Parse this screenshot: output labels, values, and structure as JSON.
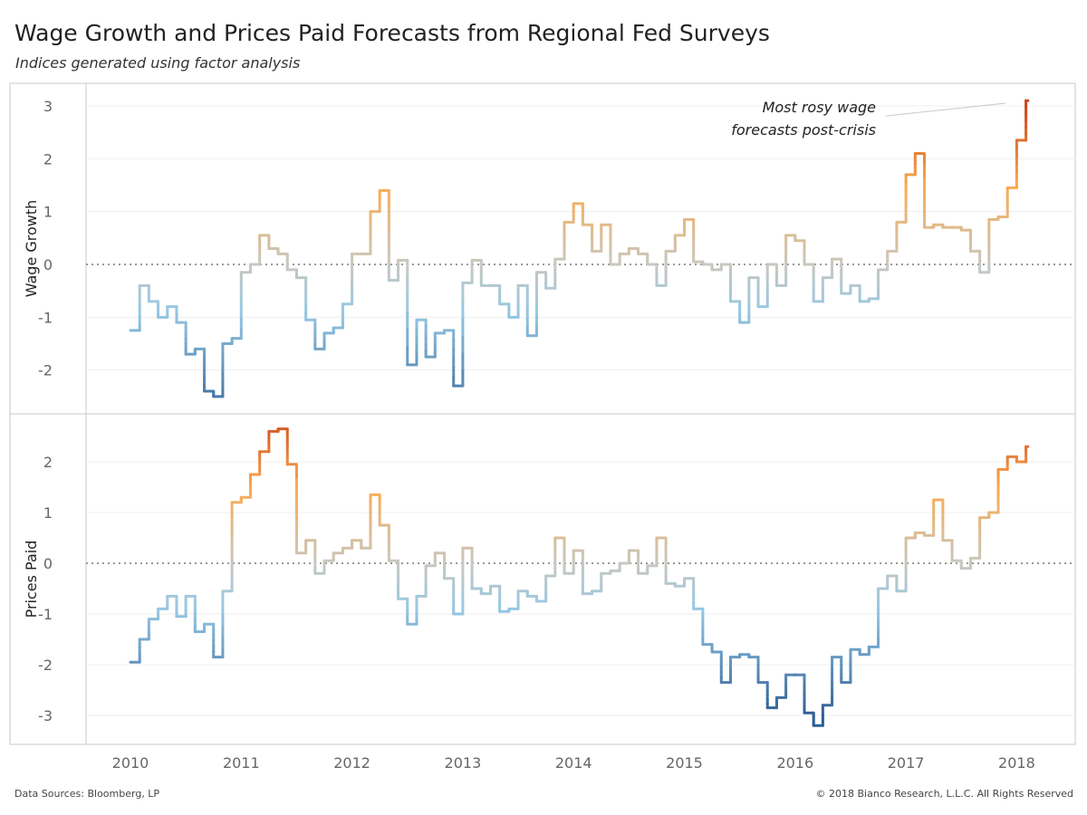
{
  "title": "Wage Growth and Prices Paid Forecasts from Regional Fed Surveys",
  "subtitle": "Indices generated using factor analysis",
  "footer_left": "Data Sources: Bloomberg, LP",
  "footer_right": "© 2018 Bianco Research, L.L.C. All Rights Reserved",
  "chart_data": [
    {
      "type": "line",
      "step": true,
      "ylabel": "Wage Growth",
      "ylim": [
        -2.8,
        3.3
      ],
      "yticks": [
        -2,
        -1,
        0,
        1,
        2,
        3
      ],
      "x_start": "2010-01",
      "frequency": "monthly",
      "xticks": [
        "2010",
        "2011",
        "2012",
        "2013",
        "2014",
        "2015",
        "2016",
        "2017",
        "2018"
      ],
      "reference_line": 0,
      "annotation": [
        "Most rosy wage",
        "forecasts post-crisis"
      ],
      "color_scale": {
        "negative": "#2f5f95",
        "neutral": "#c8c8c0",
        "positive": "#c8461a"
      },
      "values": [
        -1.25,
        -0.4,
        -0.7,
        -1.0,
        -0.8,
        -1.1,
        -1.7,
        -1.6,
        -2.4,
        -2.5,
        -1.5,
        -1.4,
        -0.15,
        0.0,
        0.55,
        0.3,
        0.2,
        -0.1,
        -0.25,
        -1.05,
        -1.6,
        -1.3,
        -1.2,
        -0.75,
        0.2,
        0.2,
        1.0,
        1.4,
        -0.3,
        0.08,
        -1.9,
        -1.05,
        -1.75,
        -1.3,
        -1.25,
        -2.3,
        -0.35,
        0.08,
        -0.4,
        -0.4,
        -0.75,
        -1.0,
        -0.4,
        -1.35,
        -0.15,
        -0.45,
        0.1,
        0.8,
        1.15,
        0.75,
        0.25,
        0.75,
        0.0,
        0.2,
        0.3,
        0.2,
        0.0,
        -0.4,
        0.25,
        0.55,
        0.85,
        0.05,
        0.0,
        -0.1,
        0.0,
        -0.7,
        -1.1,
        -0.25,
        -0.8,
        0.0,
        -0.4,
        0.55,
        0.45,
        0.0,
        -0.7,
        -0.25,
        0.1,
        -0.55,
        -0.4,
        -0.7,
        -0.65,
        -0.1,
        0.25,
        0.8,
        1.7,
        2.1,
        0.7,
        0.75,
        0.7,
        0.7,
        0.65,
        0.25,
        -0.15,
        0.85,
        0.9,
        1.45,
        2.35,
        3.1
      ]
    },
    {
      "type": "line",
      "step": true,
      "ylabel": "Prices Paid",
      "ylim": [
        -3.6,
        2.9
      ],
      "yticks": [
        -3,
        -2,
        -1,
        0,
        1,
        2
      ],
      "x_start": "2010-01",
      "frequency": "monthly",
      "xticks": [
        "2010",
        "2011",
        "2012",
        "2013",
        "2014",
        "2015",
        "2016",
        "2017",
        "2018"
      ],
      "reference_line": 0,
      "color_scale": {
        "negative": "#2f5f95",
        "neutral": "#c8c8c0",
        "positive": "#c8461a"
      },
      "values": [
        -1.95,
        -1.5,
        -1.1,
        -0.9,
        -0.65,
        -1.05,
        -0.65,
        -1.35,
        -1.2,
        -1.85,
        -0.55,
        1.2,
        1.3,
        1.75,
        2.2,
        2.6,
        2.65,
        1.95,
        0.2,
        0.45,
        -0.2,
        0.05,
        0.2,
        0.3,
        0.45,
        0.3,
        1.35,
        0.75,
        0.05,
        -0.7,
        -1.2,
        -0.65,
        -0.05,
        0.2,
        -0.3,
        -1.0,
        0.3,
        -0.5,
        -0.6,
        -0.45,
        -0.95,
        -0.9,
        -0.55,
        -0.65,
        -0.75,
        -0.25,
        0.5,
        -0.2,
        0.25,
        -0.6,
        -0.55,
        -0.2,
        -0.15,
        0.0,
        0.25,
        -0.2,
        -0.05,
        0.5,
        -0.4,
        -0.45,
        -0.3,
        -0.9,
        -1.6,
        -1.75,
        -2.35,
        -1.85,
        -1.8,
        -1.85,
        -2.35,
        -2.85,
        -2.65,
        -2.2,
        -2.2,
        -2.95,
        -3.2,
        -2.8,
        -1.85,
        -2.35,
        -1.7,
        -1.8,
        -1.65,
        -0.5,
        -0.25,
        -0.55,
        0.5,
        0.6,
        0.55,
        1.25,
        0.45,
        0.05,
        -0.1,
        0.1,
        0.9,
        1.0,
        1.85,
        2.1,
        2.0,
        2.3
      ]
    }
  ]
}
